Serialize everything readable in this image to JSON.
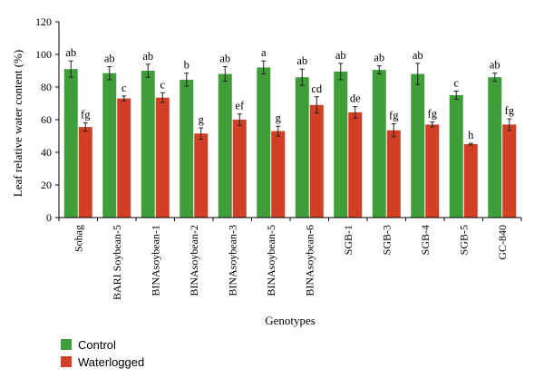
{
  "chart_data": {
    "type": "bar",
    "title": "",
    "xlabel": "Genotypes",
    "ylabel": "Leaf relative water content (%)",
    "ylim": [
      0,
      120
    ],
    "yticks": [
      0,
      20,
      40,
      60,
      80,
      100,
      120
    ],
    "grid": false,
    "legend_position": "bottom-left",
    "categories": [
      "Sohag",
      "BARI Soybean-5",
      "BINAsoybean-1",
      "BINAsoybean-2",
      "BINAsoybean-3",
      "BINAsoybean-5",
      "BINAsoybean-6",
      "SGB-1",
      "SGB-3",
      "SGB-4",
      "SGB-5",
      "GC-840"
    ],
    "series": [
      {
        "name": "Control",
        "color": "#3f9e3a",
        "values": [
          91,
          88.5,
          90,
          84.5,
          88,
          92,
          86,
          89.5,
          90.5,
          88,
          75,
          86
        ],
        "errors": [
          5,
          4,
          4,
          4,
          4.5,
          4,
          5,
          5,
          2.5,
          6.5,
          2.5,
          2.5
        ],
        "labels": [
          "ab",
          "ab",
          "ab",
          "b",
          "ab",
          "a",
          "ab",
          "ab",
          "ab",
          "ab",
          "c",
          "ab"
        ]
      },
      {
        "name": "Waterlogged",
        "color": "#d13f24",
        "values": [
          55.5,
          73,
          73.5,
          51.5,
          60,
          53,
          69,
          64.5,
          53.5,
          57,
          45,
          57
        ],
        "errors": [
          2.5,
          1.5,
          3,
          3.5,
          3.5,
          3,
          5,
          3.5,
          4,
          1.5,
          0.5,
          3.5
        ],
        "labels": [
          "fg",
          "c",
          "c",
          "g",
          "ef",
          "g",
          "cd",
          "de",
          "fg",
          "fg",
          "h",
          "fg"
        ]
      }
    ]
  }
}
